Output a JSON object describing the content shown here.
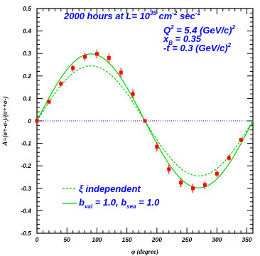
{
  "chart_data": {
    "type": "line",
    "title": "",
    "xlabel": "φ (degree)",
    "ylabel": "A=(σ+-σ-)/(σ++σ-)",
    "xlim": [
      0,
      360
    ],
    "ylim": [
      -0.5,
      0.5
    ],
    "grid": false,
    "legend_position": "lower-left",
    "x_ticks": [
      0,
      50,
      100,
      150,
      200,
      250,
      300,
      350
    ],
    "x_tick_labels": [
      "0",
      "50",
      "100",
      "150",
      "200",
      "250",
      "300",
      "350"
    ],
    "y_ticks": [
      -0.5,
      -0.4,
      -0.3,
      -0.2,
      -0.1,
      0,
      0.1,
      0.2,
      0.3,
      0.4,
      0.5
    ],
    "y_tick_labels": [
      "-0.5",
      "-0.4",
      "-0.3",
      "-0.2",
      "-0.1",
      "0",
      "0.1",
      "0.2",
      "0.3",
      "0.4",
      "0.5"
    ],
    "annotations": {
      "line1_main": "2000 hours at L= 10",
      "line1_exp": "35",
      "line1_unit": " cm",
      "line1_unit_exp": "-2",
      "line1_sec": " sec",
      "line1_sec_exp": "-1",
      "q2_label": "Q",
      "q2_exp": "2",
      "q2_value": " = 5.4 (GeV/c)",
      "q2_value_exp": "2",
      "xb_label": "x",
      "xb_sub": "B",
      "xb_value": " = 0.35",
      "t_label": "-t = 0.3 (GeV/c)",
      "t_exp": "2"
    },
    "series": [
      {
        "name": "ξ independent",
        "style": "dashed",
        "color": "#00cc00",
        "amplitude": 0.245
      },
      {
        "name": "b_val = 1.0, b_sea = 1.0",
        "legend_parts": [
          "b",
          "val",
          " = 1.0, b",
          "sea",
          " = 1.0"
        ],
        "style": "solid",
        "color": "#00cc00",
        "amplitude": 0.298
      }
    ],
    "points": {
      "x": [
        0,
        20,
        40,
        60,
        80,
        100,
        120,
        140,
        160,
        180,
        200,
        220,
        240,
        260,
        280,
        300,
        320,
        340
      ],
      "y": [
        0.0,
        0.085,
        0.165,
        0.235,
        0.285,
        0.298,
        0.28,
        0.215,
        0.12,
        0.0,
        -0.115,
        -0.215,
        -0.275,
        -0.3,
        -0.285,
        -0.235,
        -0.165,
        -0.085
      ],
      "err": [
        0.0,
        0.008,
        0.012,
        0.015,
        0.018,
        0.02,
        0.02,
        0.02,
        0.02,
        0.0,
        0.02,
        0.02,
        0.02,
        0.02,
        0.018,
        0.015,
        0.012,
        0.01
      ],
      "color": "#ff0000",
      "error_color": "#ff0000"
    },
    "colors": {
      "zero_line": "#0000ff",
      "annotation_text": "#0000ff",
      "axis": "#000000"
    }
  }
}
